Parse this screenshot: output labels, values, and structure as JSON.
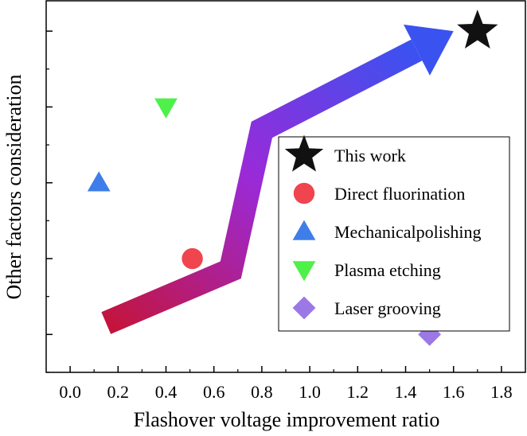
{
  "chart_data": {
    "type": "scatter",
    "xlabel": "Flashover voltage improvement  ratio",
    "ylabel": "Other factors consideration",
    "xlim": [
      -0.1,
      1.9
    ],
    "ylim": [
      0.5,
      5.4
    ],
    "x_ticks": [
      "0.0",
      "0.2",
      "0.4",
      "0.6",
      "0.8",
      "1.0",
      "1.2",
      "1.4",
      "1.6",
      "1.8"
    ],
    "x_tick_values": [
      0.0,
      0.2,
      0.4,
      0.6,
      0.8,
      1.0,
      1.2,
      1.4,
      1.6,
      1.8
    ],
    "y_major_ticks": [
      1,
      2,
      3,
      4,
      5
    ],
    "y_tick_labels_shown": false,
    "grid": false,
    "legend_placement": "center-right",
    "series": [
      {
        "name": "This work",
        "marker": "star",
        "color": "#111111",
        "x": [
          1.7
        ],
        "y": [
          5.0
        ]
      },
      {
        "name": "Direct fluorination",
        "marker": "circle",
        "color": "#f0444e",
        "x": [
          0.51
        ],
        "y": [
          2.0
        ]
      },
      {
        "name": "Mechanicalpolishing",
        "marker": "triangle-up",
        "color": "#3f7ee8",
        "x": [
          0.12
        ],
        "y": [
          3.0
        ]
      },
      {
        "name": "Plasma etching",
        "marker": "triangle-down",
        "color": "#4ef04a",
        "x": [
          0.4
        ],
        "y": [
          4.0
        ]
      },
      {
        "name": "Laser grooving",
        "marker": "diamond",
        "color": "#9b78e6",
        "x": [
          1.5
        ],
        "y": [
          1.0
        ]
      }
    ],
    "arrow": {
      "description_path_data_units": [
        [
          0.15,
          1.15
        ],
        [
          0.67,
          1.85
        ],
        [
          0.8,
          3.7
        ],
        [
          1.6,
          5.0
        ]
      ],
      "gradient_colors": [
        "#c4143c",
        "#9a2ad8",
        "#3a52f0"
      ]
    }
  }
}
